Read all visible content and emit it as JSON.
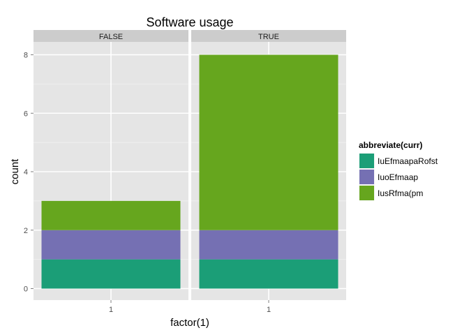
{
  "chart_data": {
    "type": "bar",
    "stacked": true,
    "title": "Software usage",
    "xlabel": "factor(1)",
    "ylabel": "count",
    "ylim": [
      0,
      8.5
    ],
    "yticks": [
      0,
      2,
      4,
      6,
      8
    ],
    "categories": [
      "1"
    ],
    "facets": [
      "FALSE",
      "TRUE"
    ],
    "legend": {
      "title": "abbreviate(curr)",
      "position": "right"
    },
    "series": [
      {
        "name": "IuEfmaapaRofst",
        "color": "#1b9e77",
        "values": {
          "FALSE": [
            1
          ],
          "TRUE": [
            1
          ]
        }
      },
      {
        "name": "IuoEfmaap",
        "color": "#7570b3",
        "values": {
          "FALSE": [
            1
          ],
          "TRUE": [
            1
          ]
        }
      },
      {
        "name": "IusRfma(pm",
        "color": "#66a61e",
        "values": {
          "FALSE": [
            1
          ],
          "TRUE": [
            6
          ]
        }
      }
    ],
    "panel_background": "#e5e5e5",
    "grid": true,
    "grid_color": "#ffffff",
    "strip_background": "#cccccc"
  }
}
